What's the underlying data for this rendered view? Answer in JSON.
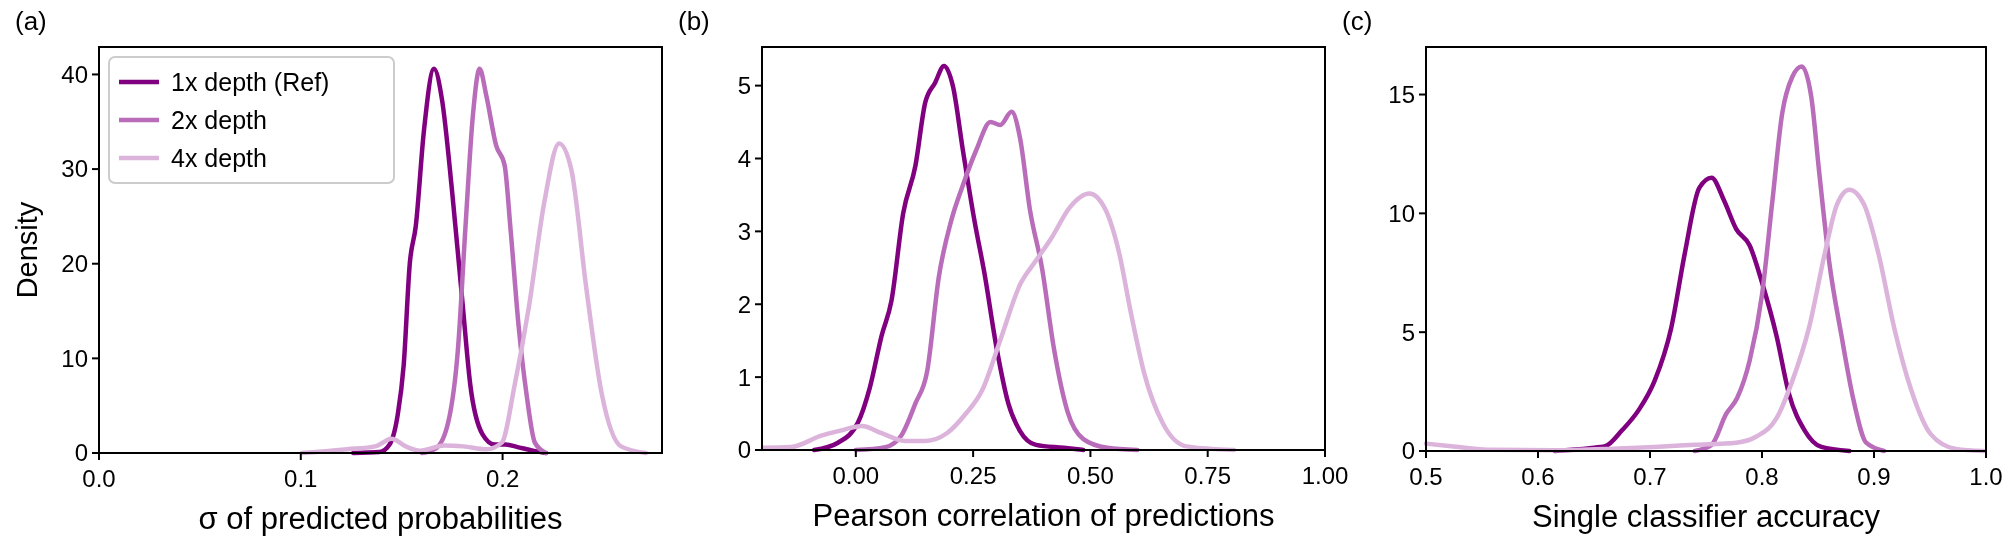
{
  "chart_data": [
    {
      "type": "line",
      "title": "(a)",
      "xlabel": "σ of predicted probabilities",
      "ylabel": "Density",
      "xlim": [
        0,
        0.279
      ],
      "ylim": [
        0,
        42.9
      ],
      "xticks": [
        {
          "value": 0,
          "label": "0.0"
        },
        0.1,
        0.2
      ],
      "yticks": [
        0,
        10,
        20,
        30,
        40
      ],
      "legend": "top left",
      "series": [
        {
          "name": "1x depth (Ref)",
          "color": "#800080",
          "x": [
            0.126,
            0.139,
            0.144,
            0.148,
            0.151,
            0.154,
            0.157,
            0.161,
            0.166,
            0.17,
            0.175,
            0.18,
            0.184,
            0.19,
            0.196,
            0.2015,
            0.207,
            0.215,
            0.2215
          ],
          "values": [
            0,
            0.1,
            0.9,
            4,
            9.3,
            20,
            24,
            34,
            40.6,
            37.3,
            27.6,
            16.2,
            7.2,
            2,
            0.9,
            0.9,
            0.65,
            0.25,
            0
          ]
        },
        {
          "name": "2x depth",
          "color": "#b96cb9",
          "x": [
            0.16,
            0.167,
            0.173,
            0.178,
            0.1815,
            0.1853,
            0.1886,
            0.192,
            0.1968,
            0.201,
            0.204,
            0.208,
            0.212,
            0.216,
            0.2215
          ],
          "values": [
            0,
            0.5,
            3.2,
            11.3,
            23.5,
            35.7,
            40.6,
            37.7,
            32.5,
            30.4,
            23.5,
            13.3,
            6,
            1.1,
            0
          ]
        },
        {
          "name": "4x depth",
          "color": "#dbb3db",
          "x": [
            0.1006,
            0.123,
            0.137,
            0.145,
            0.152,
            0.159,
            0.171,
            0.1806,
            0.192,
            0.1996,
            0.206,
            0.213,
            0.2206,
            0.228,
            0.234,
            0.2415,
            0.249,
            0.2587,
            0.271
          ],
          "values": [
            0,
            0.4,
            0.7,
            1.5,
            0.7,
            0.25,
            0.8,
            0.7,
            0.4,
            1.1,
            7.2,
            15.4,
            26.4,
            32.7,
            30,
            17.4,
            6.4,
            0.7,
            0
          ]
        }
      ]
    },
    {
      "type": "line",
      "title": "(b)",
      "xlabel": "Pearson correlation of predictions",
      "xlim": [
        -0.2,
        1.0
      ],
      "ylim": [
        0,
        5.53
      ],
      "xticks": [
        {
          "value": 0,
          "label": "0.00"
        },
        {
          "value": 0.25,
          "label": "0.25"
        },
        {
          "value": 0.5,
          "label": "0.50"
        },
        {
          "value": 0.75,
          "label": "0.75"
        },
        {
          "value": 1,
          "label": "1.00"
        }
      ],
      "yticks": [
        0,
        1,
        2,
        3,
        4,
        5
      ],
      "series": [
        {
          "color": "#800080",
          "x": [
            -0.089,
            -0.038,
            0.004,
            0.03,
            0.055,
            0.076,
            0.101,
            0.127,
            0.148,
            0.169,
            0.188,
            0.207,
            0.228,
            0.253,
            0.274,
            0.3,
            0.325,
            0.35,
            0.384,
            0.443,
            0.485
          ],
          "values": [
            0,
            0.1,
            0.37,
            0.86,
            1.57,
            2.05,
            3.25,
            3.9,
            4.77,
            5.04,
            5.27,
            4.99,
            4.12,
            3.14,
            2.43,
            1.4,
            0.64,
            0.26,
            0.07,
            0.03,
            0
          ]
        },
        {
          "color": "#b96cb9",
          "x": [
            0,
            0.063,
            0.097,
            0.127,
            0.152,
            0.177,
            0.203,
            0.228,
            0.257,
            0.287,
            0.308,
            0.332,
            0.35,
            0.371,
            0.397,
            0.422,
            0.451,
            0.485,
            0.536,
            0.6
          ],
          "values": [
            0,
            0.04,
            0.2,
            0.64,
            1.08,
            2.38,
            3.14,
            3.63,
            4.12,
            4.5,
            4.46,
            4.64,
            4.28,
            3.3,
            2.49,
            1.4,
            0.53,
            0.15,
            0.03,
            0
          ]
        },
        {
          "color": "#dbb3db",
          "x": [
            -0.198,
            -0.139,
            -0.072,
            -0.03,
            0.013,
            0.055,
            0.105,
            0.148,
            0.194,
            0.232,
            0.27,
            0.308,
            0.35,
            0.384,
            0.418,
            0.456,
            0.498,
            0.532,
            0.561,
            0.586,
            0.616,
            0.654,
            0.705,
            0.806
          ],
          "values": [
            0.03,
            0.04,
            0.2,
            0.27,
            0.33,
            0.23,
            0.125,
            0.125,
            0.23,
            0.48,
            0.83,
            1.51,
            2.27,
            2.6,
            2.92,
            3.33,
            3.52,
            3.3,
            2.71,
            1.89,
            1.02,
            0.37,
            0.05,
            0
          ]
        }
      ]
    },
    {
      "type": "line",
      "title": "(c)",
      "xlabel": "Single classifier accuracy",
      "xlim": [
        0.5,
        1.0
      ],
      "ylim": [
        0,
        17
      ],
      "xticks": [
        0.5,
        0.6,
        0.7,
        0.8,
        0.9,
        {
          "value": 1,
          "label": "1.0"
        }
      ],
      "yticks": [
        0,
        5,
        10,
        15
      ],
      "series": [
        {
          "color": "#800080",
          "x": [
            0.615,
            0.646,
            0.66,
            0.675,
            0.69,
            0.704,
            0.719,
            0.731,
            0.744,
            0.755,
            0.766,
            0.777,
            0.789,
            0.8,
            0.813,
            0.824,
            0.838,
            0.853,
            0.878
          ],
          "values": [
            0,
            0.12,
            0.2,
            0.87,
            1.73,
            2.94,
            5.19,
            8.3,
            11.07,
            11.5,
            10.55,
            9.34,
            8.65,
            7.09,
            4.84,
            2.42,
            0.87,
            0.17,
            0
          ]
        },
        {
          "color": "#b96cb9",
          "x": [
            0.74,
            0.755,
            0.768,
            0.778,
            0.789,
            0.8,
            0.809,
            0.818,
            0.827,
            0.8355,
            0.844,
            0.851,
            0.86,
            0.871,
            0.882,
            0.893,
            0.909
          ],
          "values": [
            0,
            0.26,
            1.56,
            2.25,
            3.81,
            6.57,
            10.4,
            14.2,
            15.74,
            16.18,
            14.9,
            11.76,
            7.96,
            4.84,
            2.08,
            0.35,
            0
          ]
        },
        {
          "color": "#dbb3db",
          "x": [
            0.5,
            0.5225,
            0.559,
            0.613,
            0.668,
            0.704,
            0.74,
            0.777,
            0.795,
            0.813,
            0.827,
            0.842,
            0.856,
            0.867,
            0.878,
            0.891,
            0.904,
            0.918,
            0.933,
            0.951,
            0.973,
            0.998
          ],
          "values": [
            0.31,
            0.2,
            0.05,
            0.03,
            0.1,
            0.17,
            0.26,
            0.35,
            0.61,
            1.38,
            2.94,
            5.19,
            8.3,
            10.38,
            10.99,
            10.38,
            8.3,
            5.19,
            2.6,
            0.69,
            0.09,
            0
          ]
        }
      ]
    }
  ]
}
